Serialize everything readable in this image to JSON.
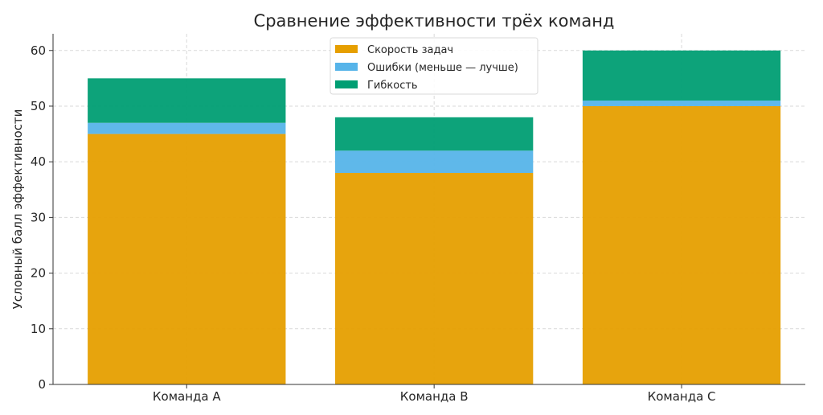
{
  "chart_data": {
    "type": "bar",
    "stacked": true,
    "title": "Сравнение эффективности трёх команд",
    "xlabel": "",
    "ylabel": "Условный балл эффективности",
    "categories": [
      "Команда A",
      "Команда B",
      "Команда C"
    ],
    "series": [
      {
        "name": "Скорость задач",
        "values": [
          45,
          38,
          50
        ],
        "color": "#E69F00"
      },
      {
        "name": "Ошибки (меньше — лучше)",
        "values": [
          2,
          4,
          1
        ],
        "color": "#56B4E9"
      },
      {
        "name": "Гибкость",
        "values": [
          8,
          6,
          9
        ],
        "color": "#009E73"
      }
    ],
    "ylim": [
      0,
      63
    ],
    "yticks": [
      0,
      10,
      20,
      30,
      40,
      50,
      60
    ],
    "grid": true,
    "legend_position": "top-center"
  }
}
